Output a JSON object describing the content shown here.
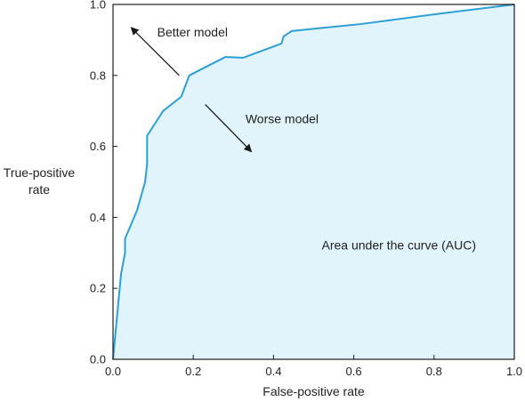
{
  "chart_data": {
    "type": "area",
    "title": "",
    "xlabel": "False-positive rate",
    "ylabel_lines": [
      "True-positive",
      "rate"
    ],
    "xlim": [
      0,
      1
    ],
    "ylim": [
      0,
      1
    ],
    "x_ticks": [
      0,
      0.2,
      0.4,
      0.6,
      0.8,
      1.0
    ],
    "y_ticks": [
      0,
      0.2,
      0.4,
      0.6,
      0.8,
      1.0
    ],
    "x_tick_labels": [
      "0.0",
      "0.2",
      "0.4",
      "0.6",
      "0.8",
      "1.0"
    ],
    "y_tick_labels": [
      "0.0",
      "0.2",
      "0.4",
      "0.6",
      "0.8",
      "1.0"
    ],
    "grid": false,
    "series": [
      {
        "x": [
          0.0,
          0.02,
          0.03,
          0.03,
          0.06,
          0.08,
          0.085,
          0.085,
          0.125,
          0.17,
          0.19,
          0.28,
          0.325,
          0.42,
          0.425,
          0.445,
          0.62,
          0.8,
          1.0
        ],
        "y": [
          0.0,
          0.24,
          0.3,
          0.34,
          0.42,
          0.5,
          0.55,
          0.63,
          0.7,
          0.74,
          0.8,
          0.852,
          0.85,
          0.89,
          0.91,
          0.925,
          0.945,
          0.972,
          1.0
        ]
      }
    ],
    "fill_color": "#e1f3fb",
    "line_color": "#2b9fd6",
    "annotations": [
      {
        "text": "Better model",
        "x": 0.11,
        "y": 0.91,
        "arrow_from": [
          0.165,
          0.8
        ],
        "arrow_to": [
          0.045,
          0.935
        ]
      },
      {
        "text": "Worse model",
        "x": 0.33,
        "y": 0.665,
        "arrow_from": [
          0.23,
          0.718
        ],
        "arrow_to": [
          0.345,
          0.585
        ]
      },
      {
        "text": "Area under the curve (AUC)",
        "x": 0.52,
        "y": 0.31
      }
    ]
  }
}
